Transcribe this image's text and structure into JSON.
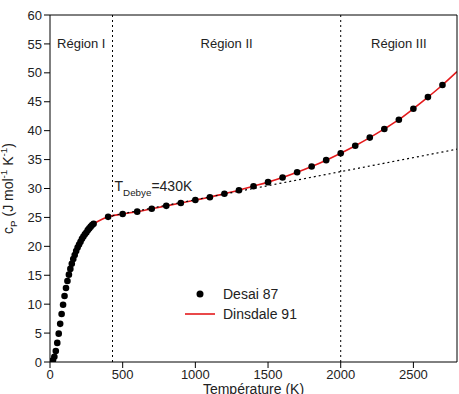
{
  "chart_data": {
    "type": "scatter_line",
    "x_label": "Température (K)",
    "y_label": "cP (J mol-1 K-1)",
    "xlim": [
      0,
      2800
    ],
    "ylim": [
      0,
      60
    ],
    "xticks": [
      0,
      500,
      1000,
      1500,
      2000,
      2500
    ],
    "yticks": [
      0,
      5,
      10,
      15,
      20,
      25,
      30,
      35,
      40,
      45,
      50,
      55,
      60
    ],
    "grid": false,
    "legend": "bottom",
    "series": [
      {
        "name": "Desai 87",
        "type": "scatter",
        "marker": "circle",
        "color": "#000000",
        "x": [
          10,
          20,
          30,
          40,
          50,
          60,
          70,
          80,
          90,
          100,
          110,
          120,
          130,
          140,
          150,
          160,
          170,
          180,
          190,
          200,
          210,
          220,
          230,
          240,
          250,
          260,
          270,
          280,
          290,
          300,
          400,
          500,
          600,
          700,
          800,
          900,
          1000,
          1100,
          1200,
          1300,
          1400,
          1500,
          1600,
          1700,
          1800,
          1900,
          2000,
          2100,
          2200,
          2300,
          2400,
          2500,
          2600,
          2700
        ],
        "values": [
          0.05,
          0.3,
          0.9,
          1.9,
          3.3,
          4.9,
          6.6,
          8.3,
          9.9,
          11.4,
          12.8,
          14.0,
          15.1,
          16.1,
          17.0,
          17.8,
          18.5,
          19.2,
          19.8,
          20.3,
          20.8,
          21.3,
          21.7,
          22.1,
          22.4,
          22.8,
          23.1,
          23.4,
          23.7,
          23.9,
          25.1,
          25.6,
          26.0,
          26.5,
          27.0,
          27.5,
          28.0,
          28.5,
          29.1,
          29.7,
          30.4,
          31.1,
          31.9,
          32.8,
          33.8,
          34.9,
          36.1,
          37.4,
          38.8,
          40.3,
          41.9,
          43.8,
          45.8,
          47.9
        ]
      },
      {
        "name": "Dinsdale 91",
        "type": "line",
        "color": "#e41a1c",
        "line_style": "solid",
        "x": [
          300,
          400,
          500,
          600,
          700,
          800,
          900,
          1000,
          1100,
          1200,
          1300,
          1400,
          1500,
          1600,
          1700,
          1800,
          1900,
          2000,
          2100,
          2200,
          2300,
          2400,
          2500,
          2600,
          2700,
          2800
        ],
        "values": [
          23.9,
          25.1,
          25.6,
          26.0,
          26.5,
          27.0,
          27.5,
          28.0,
          28.5,
          29.1,
          29.7,
          30.4,
          31.1,
          31.9,
          32.8,
          33.8,
          34.9,
          36.1,
          37.4,
          38.8,
          40.3,
          41.9,
          43.8,
          45.8,
          47.9,
          50.2
        ]
      },
      {
        "type": "line",
        "color": "#000000",
        "line_style": "dotted",
        "x": [
          430,
          2800
        ],
        "values": [
          25.3,
          36.8
        ]
      }
    ],
    "reference_lines": {
      "x": [
        430,
        2000
      ],
      "line_style": "dotted",
      "color": "#000000"
    },
    "regions": [
      {
        "label": "Région I",
        "range": [
          0,
          430
        ]
      },
      {
        "label": "Région II",
        "range": [
          430,
          2000
        ]
      },
      {
        "label": "Région III",
        "range": [
          2000,
          2800
        ]
      }
    ],
    "annotations": [
      {
        "text": "TDebye=430K",
        "x": 430,
        "y": 29.5
      }
    ]
  }
}
